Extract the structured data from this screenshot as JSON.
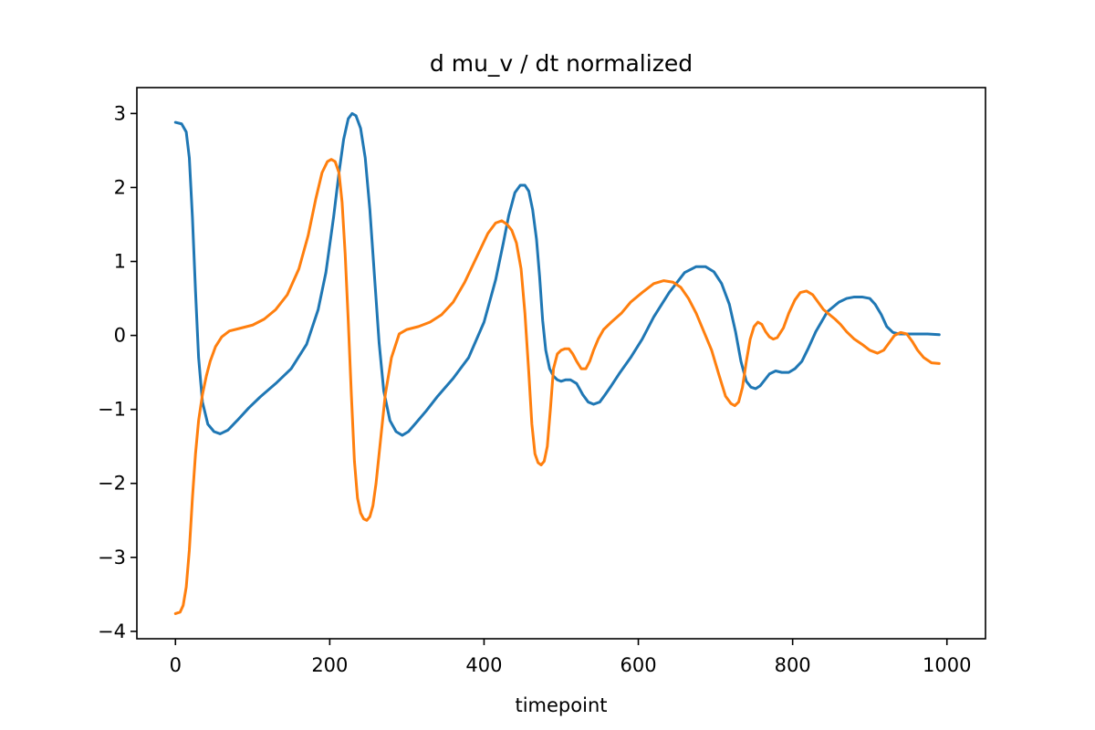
{
  "chart_data": {
    "type": "line",
    "title": "d mu_v / dt normalized",
    "xlabel": "timepoint",
    "ylabel": "",
    "xlim": [
      -50,
      1050
    ],
    "ylim": [
      -4.1,
      3.35
    ],
    "xticks": [
      0,
      200,
      400,
      600,
      800,
      1000
    ],
    "yticks": [
      -4,
      -3,
      -2,
      -1,
      0,
      1,
      2,
      3
    ],
    "xtick_labels": [
      "0",
      "200",
      "400",
      "600",
      "800",
      "1000"
    ],
    "ytick_labels": [
      "−4",
      "−3",
      "−2",
      "−1",
      "0",
      "1",
      "2",
      "3"
    ],
    "grid": false,
    "legend": "none",
    "series": [
      {
        "color": "#1f77b4",
        "x": [
          0,
          8,
          14,
          18,
          22,
          26,
          30,
          35,
          42,
          50,
          58,
          68,
          80,
          95,
          110,
          130,
          150,
          170,
          185,
          195,
          205,
          212,
          218,
          224,
          229,
          234,
          240,
          246,
          252,
          258,
          264,
          270,
          278,
          286,
          294,
          302,
          312,
          325,
          340,
          360,
          380,
          400,
          415,
          425,
          432,
          440,
          447,
          453,
          458,
          463,
          468,
          472,
          476,
          480,
          485,
          490,
          495,
          500,
          506,
          512,
          520,
          528,
          535,
          542,
          550,
          557,
          565,
          575,
          590,
          605,
          620,
          640,
          660,
          675,
          687,
          698,
          708,
          718,
          726,
          733,
          740,
          746,
          752,
          758,
          764,
          770,
          778,
          786,
          795,
          803,
          812,
          820,
          830,
          845,
          860,
          870,
          880,
          890,
          900,
          907,
          915,
          922,
          930,
          938,
          945,
          955,
          965,
          975,
          990
        ],
        "y": [
          2.88,
          2.86,
          2.75,
          2.4,
          1.6,
          0.6,
          -0.3,
          -0.9,
          -1.2,
          -1.3,
          -1.33,
          -1.28,
          -1.15,
          -0.98,
          -0.83,
          -0.65,
          -0.45,
          -0.12,
          0.35,
          0.85,
          1.6,
          2.2,
          2.65,
          2.93,
          3.0,
          2.97,
          2.8,
          2.4,
          1.7,
          0.8,
          -0.1,
          -0.75,
          -1.15,
          -1.3,
          -1.35,
          -1.3,
          -1.18,
          -1.02,
          -0.82,
          -0.58,
          -0.3,
          0.18,
          0.75,
          1.25,
          1.62,
          1.93,
          2.03,
          2.03,
          1.95,
          1.7,
          1.3,
          0.8,
          0.2,
          -0.2,
          -0.45,
          -0.55,
          -0.6,
          -0.62,
          -0.6,
          -0.6,
          -0.65,
          -0.8,
          -0.9,
          -0.93,
          -0.9,
          -0.8,
          -0.68,
          -0.52,
          -0.3,
          -0.05,
          0.25,
          0.58,
          0.85,
          0.93,
          0.93,
          0.86,
          0.7,
          0.42,
          0.05,
          -0.35,
          -0.62,
          -0.7,
          -0.72,
          -0.68,
          -0.6,
          -0.52,
          -0.48,
          -0.5,
          -0.5,
          -0.45,
          -0.35,
          -0.18,
          0.05,
          0.32,
          0.45,
          0.5,
          0.52,
          0.52,
          0.5,
          0.42,
          0.28,
          0.12,
          0.04,
          0.02,
          0.02,
          0.02,
          0.02,
          0.02,
          0.01
        ]
      },
      {
        "color": "#ff7f0e",
        "x": [
          0,
          6,
          10,
          14,
          18,
          22,
          26,
          30,
          35,
          40,
          45,
          52,
          60,
          70,
          85,
          100,
          115,
          130,
          145,
          160,
          172,
          182,
          190,
          197,
          202,
          207,
          212,
          216,
          220,
          224,
          228,
          232,
          236,
          240,
          244,
          248,
          252,
          256,
          260,
          266,
          272,
          280,
          290,
          300,
          315,
          330,
          345,
          360,
          375,
          390,
          405,
          415,
          423,
          430,
          436,
          442,
          448,
          453,
          458,
          462,
          466,
          470,
          474,
          478,
          482,
          486,
          490,
          495,
          500,
          505,
          510,
          515,
          520,
          526,
          532,
          537,
          542,
          548,
          555,
          565,
          578,
          590,
          605,
          620,
          633,
          645,
          655,
          665,
          675,
          685,
          695,
          705,
          713,
          720,
          725,
          730,
          735,
          740,
          745,
          750,
          755,
          760,
          765,
          770,
          775,
          780,
          788,
          795,
          803,
          810,
          818,
          826,
          833,
          840,
          848,
          855,
          862,
          870,
          880,
          890,
          900,
          910,
          918,
          925,
          932,
          940,
          948,
          955,
          962,
          970,
          980,
          990
        ],
        "y": [
          -3.76,
          -3.74,
          -3.65,
          -3.4,
          -2.9,
          -2.2,
          -1.6,
          -1.15,
          -0.8,
          -0.55,
          -0.35,
          -0.15,
          -0.02,
          0.06,
          0.1,
          0.14,
          0.22,
          0.35,
          0.55,
          0.9,
          1.35,
          1.85,
          2.2,
          2.35,
          2.38,
          2.35,
          2.2,
          1.8,
          1.1,
          0.2,
          -0.8,
          -1.7,
          -2.2,
          -2.4,
          -2.48,
          -2.5,
          -2.45,
          -2.3,
          -2.0,
          -1.4,
          -0.8,
          -0.3,
          0.02,
          0.08,
          0.12,
          0.18,
          0.28,
          0.45,
          0.72,
          1.05,
          1.38,
          1.52,
          1.55,
          1.5,
          1.42,
          1.25,
          0.9,
          0.3,
          -0.5,
          -1.2,
          -1.6,
          -1.72,
          -1.75,
          -1.7,
          -1.5,
          -1.0,
          -0.45,
          -0.25,
          -0.2,
          -0.18,
          -0.18,
          -0.25,
          -0.35,
          -0.45,
          -0.45,
          -0.35,
          -0.2,
          -0.05,
          0.08,
          0.18,
          0.3,
          0.45,
          0.58,
          0.7,
          0.74,
          0.72,
          0.65,
          0.5,
          0.3,
          0.05,
          -0.2,
          -0.55,
          -0.82,
          -0.92,
          -0.95,
          -0.9,
          -0.7,
          -0.35,
          -0.05,
          0.12,
          0.18,
          0.15,
          0.05,
          -0.02,
          -0.05,
          -0.03,
          0.1,
          0.3,
          0.48,
          0.58,
          0.6,
          0.55,
          0.45,
          0.35,
          0.28,
          0.22,
          0.15,
          0.05,
          -0.05,
          -0.12,
          -0.2,
          -0.24,
          -0.2,
          -0.1,
          0.0,
          0.04,
          0.02,
          -0.08,
          -0.2,
          -0.3,
          -0.37,
          -0.38
        ]
      }
    ]
  }
}
